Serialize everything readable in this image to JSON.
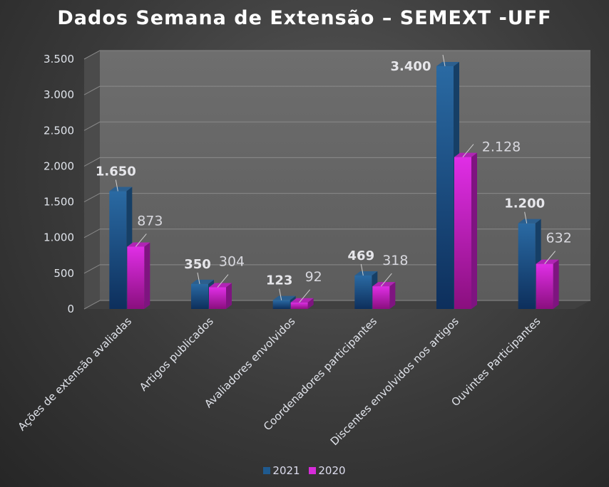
{
  "chart_data": {
    "type": "bar",
    "title": "Dados Semana de Extensão – SEMEXT -UFF",
    "categories": [
      "Ações de extensão avaliadas",
      "Artigos publicados",
      "Avaliadores envolvidos",
      "Coordenadores participantes",
      "Discentes envolvidos nos artigos",
      "Ouvintes Participantes"
    ],
    "series": [
      {
        "name": "2021",
        "values": [
          1650,
          350,
          123,
          469,
          3400,
          1200
        ],
        "labels": [
          "1.650",
          "350",
          "123",
          "469",
          "3.400",
          "1.200"
        ],
        "color": "#1f5a8f"
      },
      {
        "name": "2020",
        "values": [
          873,
          304,
          92,
          318,
          2128,
          632
        ],
        "labels": [
          "873",
          "304",
          "92",
          "318",
          "2.128",
          "632"
        ],
        "color": "#d62bd9"
      }
    ],
    "yticks": [
      0,
      500,
      1000,
      1500,
      2000,
      2500,
      3000,
      3500
    ],
    "ytick_labels": [
      "0",
      "500",
      "1.000",
      "1.500",
      "2.000",
      "2.500",
      "3.000",
      "3.500"
    ],
    "ylim": [
      0,
      3500
    ],
    "grid": true,
    "legend": "bottom",
    "style": "3d-column"
  }
}
